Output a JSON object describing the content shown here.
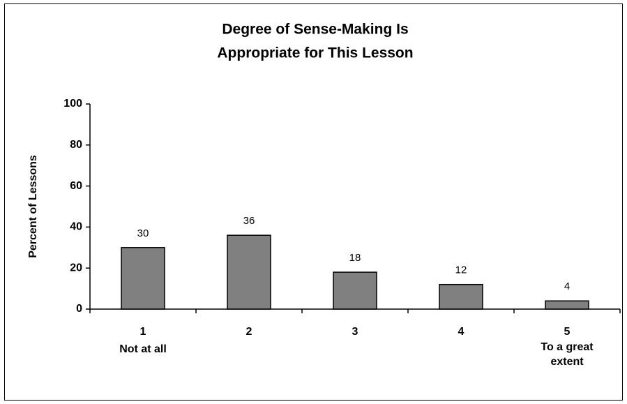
{
  "chart_data": {
    "type": "bar",
    "title": [
      "Degree of Sense-Making Is",
      "Appropriate for This Lesson"
    ],
    "y_label": "Percent of Lessons",
    "categories": [
      "1",
      "2",
      "3",
      "4",
      "5"
    ],
    "category_descriptions": [
      "Not at all",
      null,
      null,
      null,
      "To a great extent"
    ],
    "values": [
      30,
      36,
      18,
      12,
      4
    ],
    "color": "#808080",
    "ylim": [
      0,
      100
    ],
    "yticks": [
      0,
      20,
      40,
      60,
      80,
      100
    ],
    "grid": false
  }
}
